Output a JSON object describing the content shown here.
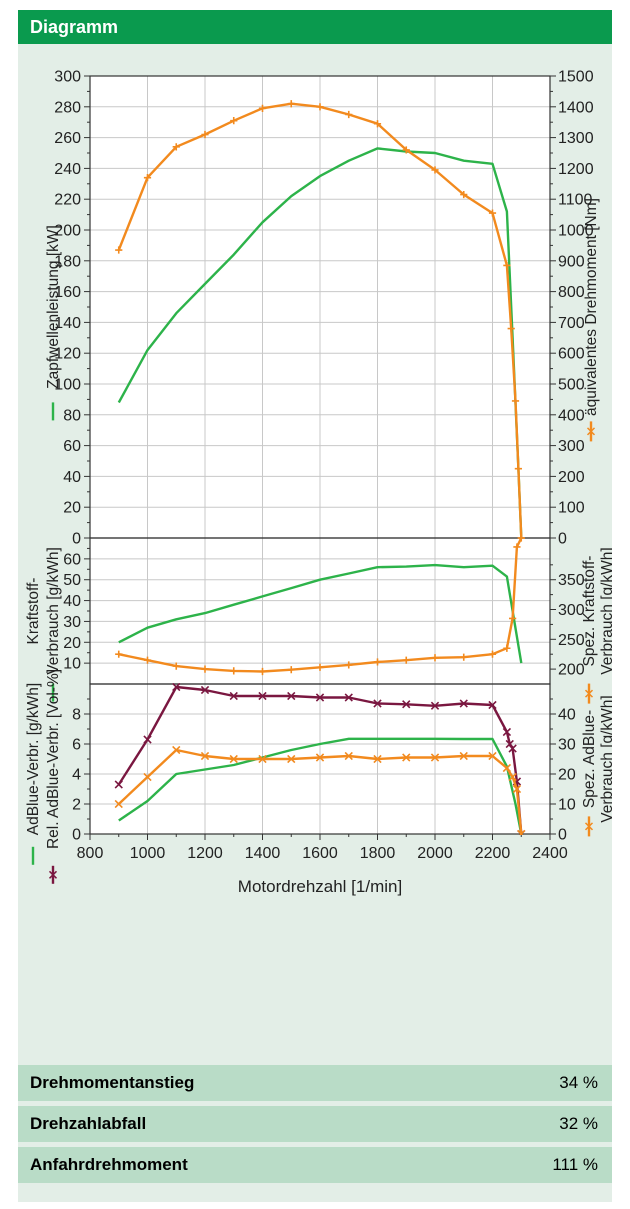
{
  "header": {
    "title": "Diagramm"
  },
  "rows": [
    {
      "label": "Drehmomentanstieg",
      "value": "34 %"
    },
    {
      "label": "Drehzahlabfall",
      "value": "32 %"
    },
    {
      "label": "Anfahrdrehmoment",
      "value": "111 %"
    }
  ],
  "colors": {
    "green": "#2db34a",
    "orange": "#f28a1e",
    "purple": "#7a1740",
    "header": "#0a9a4e",
    "panel": "#e3eee7",
    "row": "#b9dcc7"
  },
  "chart_data": [
    {
      "type": "line",
      "xlabel": "Motordrehzahl [1/min]",
      "xlim": [
        800,
        2400
      ],
      "xticks": [
        "800",
        "1000",
        "1200",
        "1400",
        "1600",
        "1800",
        "2000",
        "2200",
        "2400"
      ],
      "ylabel": "Zapfwellenleistung [kW]",
      "ylim": [
        0,
        300
      ],
      "yticks": [
        "0",
        "20",
        "40",
        "60",
        "80",
        "100",
        "120",
        "140",
        "160",
        "180",
        "200",
        "220",
        "240",
        "260",
        "280",
        "300"
      ],
      "y2label": "äquivalentes Drehmoment [Nm]",
      "y2lim": [
        0,
        1500
      ],
      "y2ticks": [
        "0",
        "100",
        "200",
        "300",
        "400",
        "500",
        "600",
        "700",
        "800",
        "900",
        "1000",
        "1100",
        "1200",
        "1300",
        "1400",
        "1500"
      ],
      "grid": true,
      "series": [
        {
          "axis": "left",
          "color": "green",
          "marker": "none",
          "points": [
            [
              900,
              88
            ],
            [
              1000,
              122
            ],
            [
              1100,
              146
            ],
            [
              1200,
              165
            ],
            [
              1300,
              184
            ],
            [
              1400,
              205
            ],
            [
              1500,
              222
            ],
            [
              1600,
              235
            ],
            [
              1700,
              245
            ],
            [
              1800,
              253
            ],
            [
              1900,
              251
            ],
            [
              2000,
              250
            ],
            [
              2100,
              245
            ],
            [
              2200,
              243
            ],
            [
              2250,
              212
            ],
            [
              2270,
              130
            ],
            [
              2290,
              45
            ],
            [
              2300,
              0
            ]
          ]
        },
        {
          "axis": "right",
          "color": "orange",
          "marker": "plus",
          "points": [
            [
              900,
              935
            ],
            [
              1000,
              1170
            ],
            [
              1100,
              1270
            ],
            [
              1200,
              1310
            ],
            [
              1300,
              1355
            ],
            [
              1400,
              1395
            ],
            [
              1500,
              1410
            ],
            [
              1600,
              1400
            ],
            [
              1700,
              1375
            ],
            [
              1800,
              1345
            ],
            [
              1900,
              1260
            ],
            [
              2000,
              1195
            ],
            [
              2100,
              1115
            ],
            [
              2200,
              1055
            ],
            [
              2250,
              885
            ],
            [
              2265,
              680
            ],
            [
              2280,
              445
            ],
            [
              2290,
              225
            ],
            [
              2300,
              0
            ]
          ]
        }
      ]
    },
    {
      "type": "line",
      "ylabel": "Kraftstoff-Verbrauch [g/kWh]",
      "ylabel_lines": [
        "Kraftstoff-",
        "Verbrauch [g/kWh]"
      ],
      "ylim": [
        0,
        70
      ],
      "yticks": [
        "10",
        "20",
        "30",
        "40",
        "50",
        "60"
      ],
      "y2label": "Spez. Kraftstoff-Verbrauch [g/kWh]",
      "y2label_lines": [
        "Spez. Kraftstoff-",
        "Verbrauch [g/kWh]"
      ],
      "y2lim": [
        175,
        420
      ],
      "y2ticks": [
        "200",
        "250",
        "300",
        "350"
      ],
      "grid": true,
      "series": [
        {
          "axis": "left",
          "color": "green",
          "marker": "none",
          "points": [
            [
              900,
              20
            ],
            [
              1000,
              27
            ],
            [
              1100,
              31
            ],
            [
              1200,
              34
            ],
            [
              1300,
              38
            ],
            [
              1400,
              42
            ],
            [
              1500,
              46
            ],
            [
              1600,
              50
            ],
            [
              1700,
              53
            ],
            [
              1800,
              56
            ],
            [
              1900,
              56.3
            ],
            [
              2000,
              57
            ],
            [
              2100,
              56
            ],
            [
              2200,
              56.7
            ],
            [
              2250,
              51.5
            ],
            [
              2300,
              10
            ]
          ]
        },
        {
          "axis": "right",
          "color": "orange",
          "marker": "plus",
          "points": [
            [
              900,
              225
            ],
            [
              1000,
              215
            ],
            [
              1100,
              205
            ],
            [
              1200,
              200
            ],
            [
              1300,
              197
            ],
            [
              1400,
              196
            ],
            [
              1500,
              199
            ],
            [
              1600,
              203
            ],
            [
              1700,
              207
            ],
            [
              1800,
              212
            ],
            [
              1900,
              215
            ],
            [
              2000,
              219
            ],
            [
              2100,
              220
            ],
            [
              2200,
              225
            ],
            [
              2250,
              235
            ],
            [
              2270,
              285
            ],
            [
              2285,
              405
            ],
            [
              2300,
              420
            ]
          ]
        }
      ]
    },
    {
      "type": "line",
      "ylabel": "AdBlue-Verbr. [g/kWh]",
      "ylabel2": "Rel. AdBlue-Verbr. [Vol-%]",
      "ylim": [
        0,
        10
      ],
      "yticks": [
        "0",
        "2",
        "4",
        "6",
        "8"
      ],
      "y2label": "Spez. AdBlue-Verbrauch [g/kWh]",
      "y2label_lines": [
        "Spez. AdBlue-",
        "Verbrauch [g/kWh]"
      ],
      "y2lim": [
        0,
        50
      ],
      "y2ticks": [
        "0",
        "10",
        "20",
        "30",
        "40"
      ],
      "grid": true,
      "series": [
        {
          "axis": "left",
          "color": "green",
          "marker": "none",
          "points": [
            [
              900,
              0.9
            ],
            [
              1000,
              2.2
            ],
            [
              1100,
              4
            ],
            [
              1200,
              4.3
            ],
            [
              1300,
              4.6
            ],
            [
              1400,
              5.1
            ],
            [
              1500,
              5.6
            ],
            [
              1600,
              6
            ],
            [
              1700,
              6.35
            ],
            [
              1800,
              6.35
            ],
            [
              1900,
              6.35
            ],
            [
              2000,
              6.35
            ],
            [
              2100,
              6.33
            ],
            [
              2200,
              6.33
            ],
            [
              2250,
              4.5
            ],
            [
              2280,
              2
            ],
            [
              2300,
              0
            ]
          ]
        },
        {
          "axis": "left",
          "color": "purple",
          "marker": "x",
          "points": [
            [
              900,
              3.3
            ],
            [
              1000,
              6.3
            ],
            [
              1100,
              9.8
            ],
            [
              1200,
              9.6
            ],
            [
              1300,
              9.2
            ],
            [
              1400,
              9.2
            ],
            [
              1500,
              9.2
            ],
            [
              1600,
              9.1
            ],
            [
              1700,
              9.1
            ],
            [
              1800,
              8.7
            ],
            [
              1900,
              8.65
            ],
            [
              2000,
              8.55
            ],
            [
              2100,
              8.7
            ],
            [
              2200,
              8.6
            ],
            [
              2250,
              6.8
            ],
            [
              2260,
              6
            ],
            [
              2270,
              5.7
            ],
            [
              2285,
              3.5
            ],
            [
              2300,
              0
            ]
          ]
        },
        {
          "axis": "right",
          "color": "orange",
          "marker": "x",
          "points": [
            [
              900,
              10
            ],
            [
              1000,
              19
            ],
            [
              1100,
              28
            ],
            [
              1200,
              26
            ],
            [
              1300,
              25
            ],
            [
              1400,
              25
            ],
            [
              1500,
              25
            ],
            [
              1600,
              25.5
            ],
            [
              1700,
              26
            ],
            [
              1800,
              25
            ],
            [
              1900,
              25.5
            ],
            [
              2000,
              25.5
            ],
            [
              2100,
              26
            ],
            [
              2200,
              26
            ],
            [
              2250,
              22
            ],
            [
              2270,
              19
            ],
            [
              2285,
              15
            ],
            [
              2300,
              0
            ]
          ]
        }
      ]
    }
  ]
}
